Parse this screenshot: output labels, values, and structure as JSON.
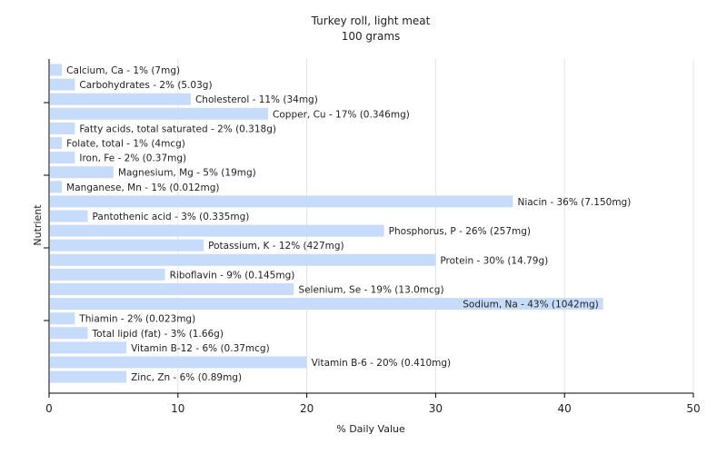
{
  "chart_data": {
    "type": "bar",
    "orientation": "horizontal",
    "title": "Turkey roll, light meat",
    "subtitle": "100 grams",
    "xlabel": "% Daily Value",
    "ylabel": "Nutrient",
    "xlim": [
      0,
      50
    ],
    "xticks": [
      0,
      10,
      20,
      30,
      40,
      50
    ],
    "grid": true,
    "bar_color": "#c6dcfa",
    "categories": [
      "Calcium, Ca",
      "Carbohydrates",
      "Cholesterol",
      "Copper, Cu",
      "Fatty acids, total saturated",
      "Folate, total",
      "Iron, Fe",
      "Magnesium, Mg",
      "Manganese, Mn",
      "Niacin",
      "Pantothenic acid",
      "Phosphorus, P",
      "Potassium, K",
      "Protein",
      "Riboflavin",
      "Selenium, Se",
      "Sodium, Na",
      "Thiamin",
      "Total lipid (fat)",
      "Vitamin B-12",
      "Vitamin B-6",
      "Zinc, Zn"
    ],
    "values": [
      1,
      2,
      11,
      17,
      2,
      1,
      2,
      5,
      1,
      36,
      3,
      26,
      12,
      30,
      9,
      19,
      43,
      2,
      3,
      6,
      20,
      6
    ],
    "labels": [
      "Calcium, Ca - 1% (7mg)",
      "Carbohydrates - 2% (5.03g)",
      "Cholesterol - 11% (34mg)",
      "Copper, Cu - 17% (0.346mg)",
      "Fatty acids, total saturated - 2% (0.318g)",
      "Folate, total - 1% (4mcg)",
      "Iron, Fe - 2% (0.37mg)",
      "Magnesium, Mg - 5% (19mg)",
      "Manganese, Mn - 1% (0.012mg)",
      "Niacin - 36% (7.150mg)",
      "Pantothenic acid - 3% (0.335mg)",
      "Phosphorus, P - 26% (257mg)",
      "Potassium, K - 12% (427mg)",
      "Protein - 30% (14.79g)",
      "Riboflavin - 9% (0.145mg)",
      "Selenium, Se - 19% (13.0mcg)",
      "Sodium, Na - 43% (1042mg)",
      "Thiamin - 2% (0.023mg)",
      "Total lipid (fat) - 3% (1.66g)",
      "Vitamin B-12 - 6% (0.37mcg)",
      "Vitamin B-6 - 20% (0.410mg)",
      "Zinc, Zn - 6% (0.89mg)"
    ]
  }
}
